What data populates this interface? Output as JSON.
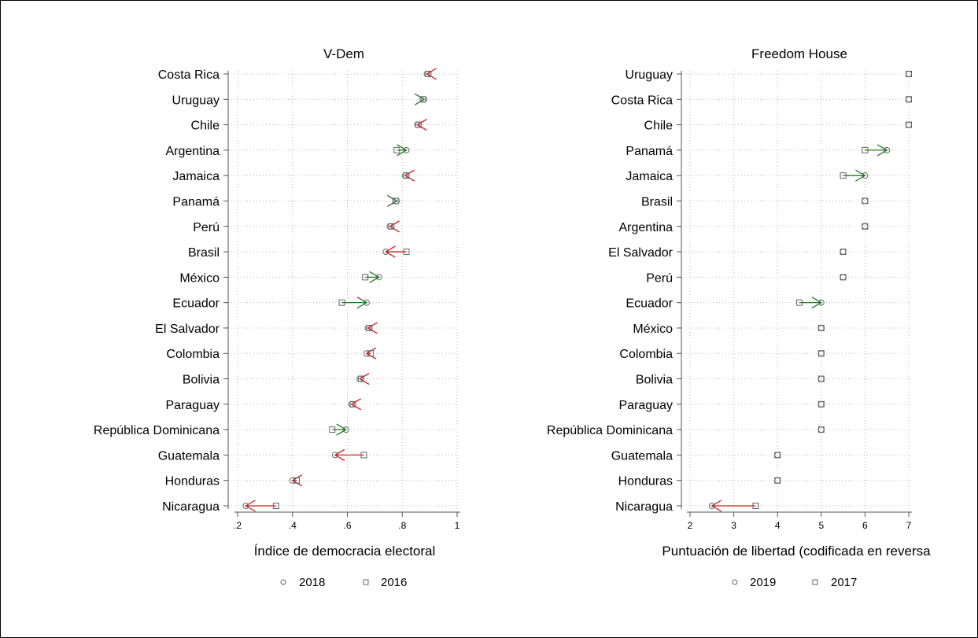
{
  "chart_data": [
    {
      "type": "dot-arrow",
      "title": "V-Dem",
      "xlabel": "Índice de democracia electoral",
      "xlim": [
        0.2,
        1.0
      ],
      "xticks": [
        0.2,
        0.4,
        0.6,
        0.8,
        1.0
      ],
      "xtick_labels": [
        ".2",
        ".4",
        ".6",
        ".8",
        "1"
      ],
      "grid": true,
      "legend": {
        "position": "bottom",
        "entries": [
          {
            "name": "2018",
            "marker": "circle"
          },
          {
            "name": "2016",
            "marker": "square"
          }
        ]
      },
      "series_names": [
        "2018",
        "2016"
      ],
      "increase_color": "#1f7a1f",
      "decrease_color": "#d11a1a",
      "rows": [
        {
          "country": "Costa Rica",
          "v2018": 0.89,
          "v2016": 0.895
        },
        {
          "country": "Uruguay",
          "v2018": 0.88,
          "v2016": 0.875
        },
        {
          "country": "Chile",
          "v2018": 0.855,
          "v2016": 0.86
        },
        {
          "country": "Argentina",
          "v2018": 0.815,
          "v2016": 0.78
        },
        {
          "country": "Jamaica",
          "v2018": 0.81,
          "v2016": 0.815
        },
        {
          "country": "Panamá",
          "v2018": 0.78,
          "v2016": 0.775
        },
        {
          "country": "Perú",
          "v2018": 0.755,
          "v2016": 0.76
        },
        {
          "country": "Brasil",
          "v2018": 0.74,
          "v2016": 0.815
        },
        {
          "country": "México",
          "v2018": 0.715,
          "v2016": 0.665
        },
        {
          "country": "Ecuador",
          "v2018": 0.67,
          "v2016": 0.58
        },
        {
          "country": "El Salvador",
          "v2018": 0.675,
          "v2016": 0.68
        },
        {
          "country": "Colombia",
          "v2018": 0.67,
          "v2016": 0.685
        },
        {
          "country": "Bolivia",
          "v2018": 0.645,
          "v2016": 0.65
        },
        {
          "country": "Paraguay",
          "v2018": 0.615,
          "v2016": 0.62
        },
        {
          "country": "República Dominicana",
          "v2018": 0.595,
          "v2016": 0.545
        },
        {
          "country": "Guatemala",
          "v2018": 0.555,
          "v2016": 0.66
        },
        {
          "country": "Honduras",
          "v2018": 0.4,
          "v2016": 0.415
        },
        {
          "country": "Nicaragua",
          "v2018": 0.23,
          "v2016": 0.34
        }
      ]
    },
    {
      "type": "dot-arrow",
      "title": "Freedom House",
      "xlabel": "Puntuación de libertad (codificada en reversa",
      "xlim": [
        2,
        7
      ],
      "xticks": [
        2,
        3,
        4,
        5,
        6,
        7
      ],
      "xtick_labels": [
        "2",
        "3",
        "4",
        "5",
        "6",
        "7"
      ],
      "grid": true,
      "legend": {
        "position": "bottom",
        "entries": [
          {
            "name": "2019",
            "marker": "circle"
          },
          {
            "name": "2017",
            "marker": "square"
          }
        ]
      },
      "series_names": [
        "2019",
        "2017"
      ],
      "increase_color": "#1f7a1f",
      "decrease_color": "#d11a1a",
      "rows": [
        {
          "country": "Uruguay",
          "v2019": 7,
          "v2017": 7
        },
        {
          "country": "Costa Rica",
          "v2019": 7,
          "v2017": 7
        },
        {
          "country": "Chile",
          "v2019": 7,
          "v2017": 7
        },
        {
          "country": "Panamá",
          "v2019": 6.5,
          "v2017": 6
        },
        {
          "country": "Jamaica",
          "v2019": 6,
          "v2017": 5.5
        },
        {
          "country": "Brasil",
          "v2019": 6,
          "v2017": 6
        },
        {
          "country": "Argentina",
          "v2019": 6,
          "v2017": 6
        },
        {
          "country": "El Salvador",
          "v2019": 5.5,
          "v2017": 5.5
        },
        {
          "country": "Perú",
          "v2019": 5.5,
          "v2017": 5.5
        },
        {
          "country": "Ecuador",
          "v2019": 5,
          "v2017": 4.5
        },
        {
          "country": "México",
          "v2019": 5,
          "v2017": 5
        },
        {
          "country": "Colombia",
          "v2019": 5,
          "v2017": 5
        },
        {
          "country": "Bolivia",
          "v2019": 5,
          "v2017": 5
        },
        {
          "country": "Paraguay",
          "v2019": 5,
          "v2017": 5
        },
        {
          "country": "República Dominicana",
          "v2019": 5,
          "v2017": 5
        },
        {
          "country": "Guatemala",
          "v2019": 4,
          "v2017": 4
        },
        {
          "country": "Honduras",
          "v2019": 4,
          "v2017": 4
        },
        {
          "country": "Nicaragua",
          "v2019": 2.5,
          "v2017": 3.5
        }
      ]
    }
  ]
}
